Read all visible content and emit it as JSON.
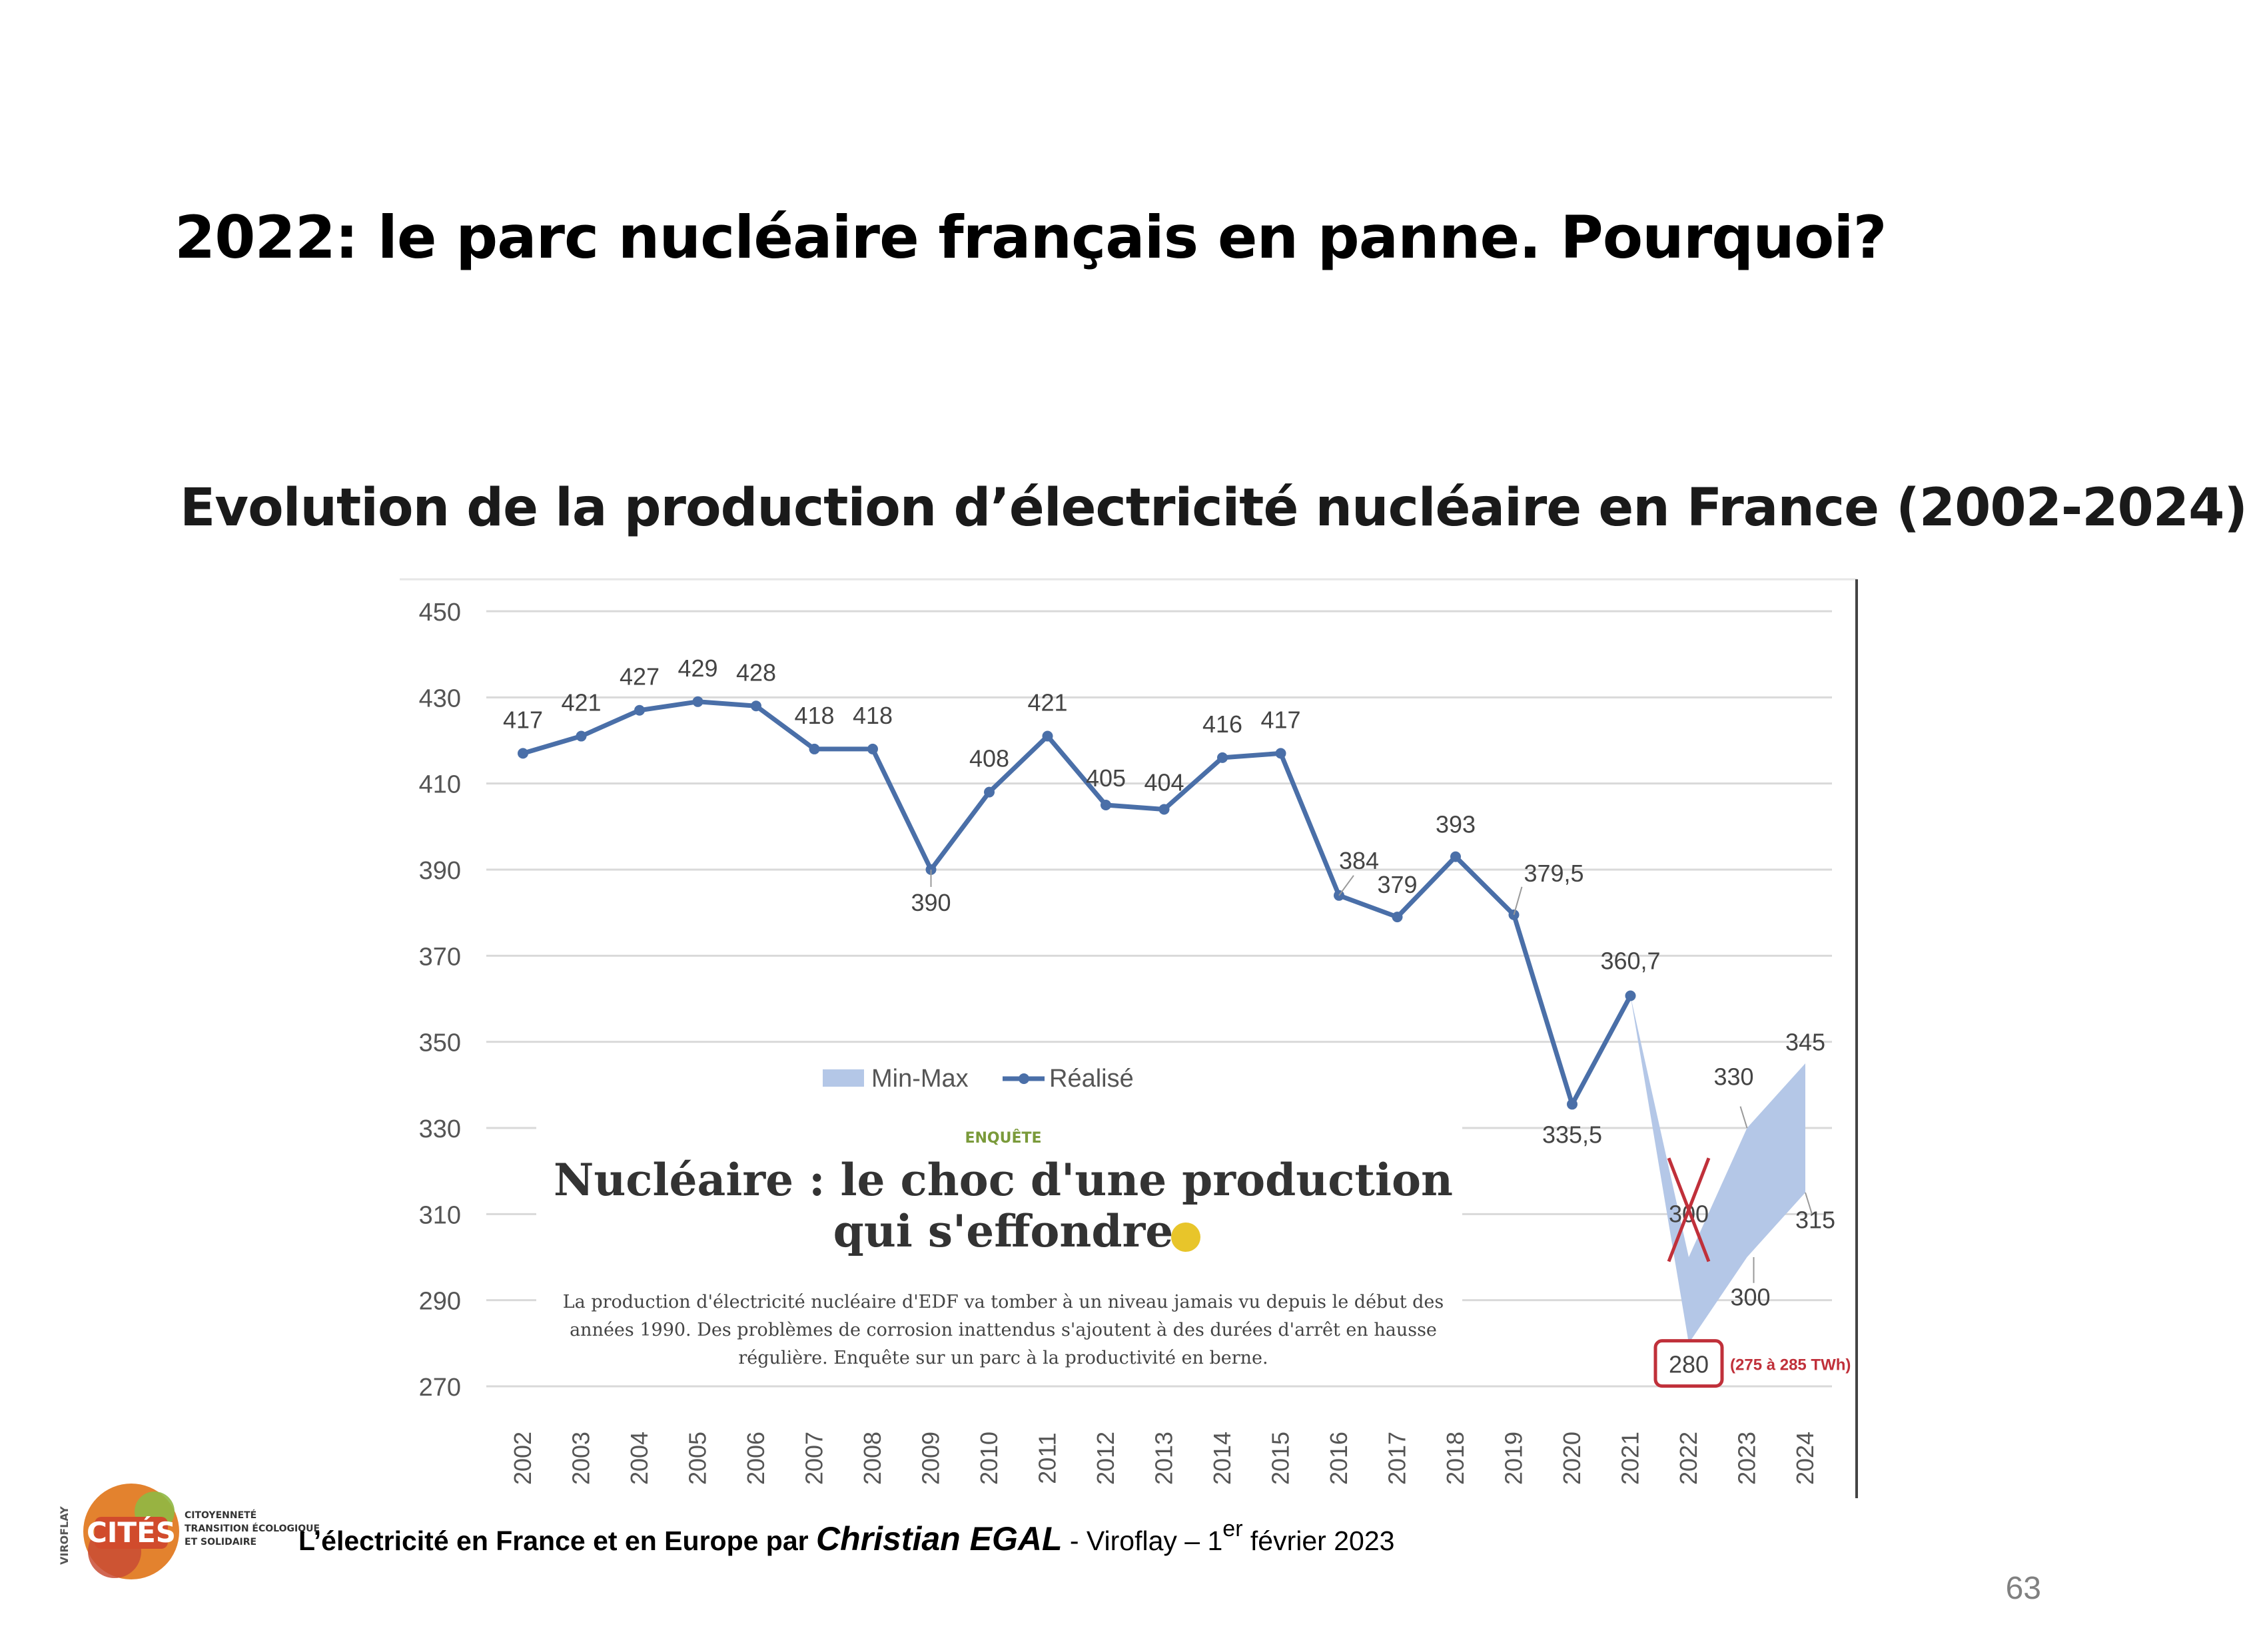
{
  "slide": {
    "title": "2022: le parc nucléaire français en panne. Pourquoi?",
    "chart_title": "Evolution de la production d’électricité nucléaire en France (2002-2024)",
    "footer": {
      "prefix": "L’électricité en France et en Europe par ",
      "author": "Christian EGAL",
      "place": " - Viroflay – 1",
      "sup": "er",
      "date": " février 2023"
    },
    "page_number": "63",
    "logo": {
      "vertical": "VIROFLAY",
      "name": "CITÉS",
      "line1": "CITOYENNETÉ",
      "line2": "TRANSITION ÉCOLOGIQUE",
      "line3": "ET SOLIDAIRE"
    }
  },
  "inset": {
    "kicker": "ENQUÊTE",
    "headline_1": "Nucléaire : le choc d'une production",
    "headline_2": "qui s'effondre",
    "body_1": "La production d'électricité nucléaire d'EDF va tomber à un niveau jamais vu depuis le début des",
    "body_2": "années 1990. Des problèmes de corrosion inattendus s'ajoutent à des durées d'arrêt en hausse",
    "body_3": "régulière. Enquête sur un parc à la productivité en berne."
  },
  "colors": {
    "line": "#4a6fa8",
    "band": "#b4c7e7",
    "grid": "#d9d9d9",
    "highlight": "#c0303a"
  },
  "chart_data": {
    "type": "line",
    "x": [
      "2002",
      "2003",
      "2004",
      "2005",
      "2006",
      "2007",
      "2008",
      "2009",
      "2010",
      "2011",
      "2012",
      "2013",
      "2014",
      "2015",
      "2016",
      "2017",
      "2018",
      "2019",
      "2020",
      "2021",
      "2022",
      "2023",
      "2024"
    ],
    "series": [
      {
        "name": "Réalisé",
        "values": [
          417,
          421,
          427,
          429,
          428,
          418,
          418,
          390,
          408,
          421,
          405,
          404,
          416,
          417,
          384,
          379,
          393,
          379.5,
          335.5,
          360.7,
          null,
          null,
          null
        ],
        "labels": [
          "417",
          "421",
          "427",
          "429",
          "428",
          "418",
          "418",
          "390",
          "408",
          "421",
          "405",
          "404",
          "416",
          "417",
          "384",
          "379",
          "393",
          "379,5",
          "335,5",
          "360,7",
          "",
          "",
          ""
        ]
      },
      {
        "name": "Min-Max",
        "x": [
          "2021",
          "2022",
          "2023",
          "2024"
        ],
        "min": [
          360.7,
          280,
          300,
          315
        ],
        "max": [
          360.7,
          300,
          330,
          345
        ]
      }
    ],
    "band_labels": {
      "crossed": "300",
      "max_2023": "330",
      "max_2024": "345",
      "min_2023": "300",
      "min_2024": "315",
      "boxed_2022": "280",
      "range_note": "(275 à 285 TWh)"
    },
    "yticks": [
      "450",
      "430",
      "410",
      "390",
      "370",
      "350",
      "330",
      "310",
      "290",
      "270"
    ],
    "ylim": [
      270,
      450
    ],
    "grid": true,
    "legend_position": "center"
  }
}
